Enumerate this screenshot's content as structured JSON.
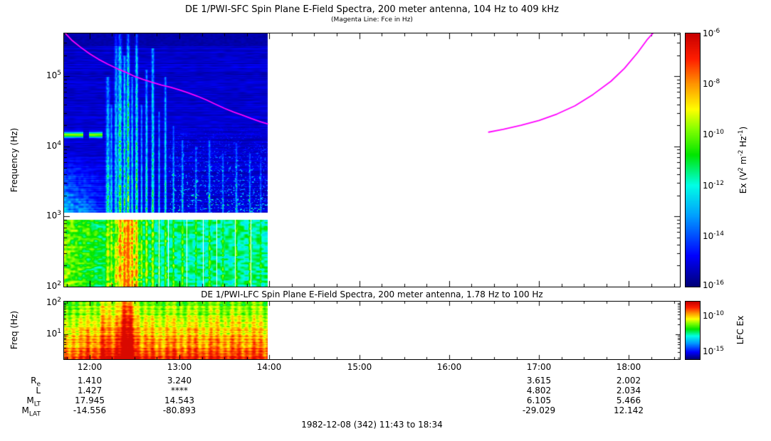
{
  "sfc": {
    "title": "DE 1/PWI-SFC  Spin Plane E-Field Spectra, 200 meter antenna, 104 Hz to 409 kHz",
    "subtitle": "(Magenta Line: Fce in Hz)",
    "ylabel": "Frequency (Hz)",
    "yticks": [
      {
        "base": "10",
        "exp": "5"
      },
      {
        "base": "10",
        "exp": "4"
      },
      {
        "base": "10",
        "exp": "3"
      },
      {
        "base": "10",
        "exp": "2"
      }
    ],
    "colorbar": {
      "ticks": [
        {
          "base": "10",
          "exp": "-6"
        },
        {
          "base": "10",
          "exp": "-8"
        },
        {
          "base": "10",
          "exp": "-10"
        },
        {
          "base": "10",
          "exp": "-12"
        },
        {
          "base": "10",
          "exp": "-14"
        },
        {
          "base": "10",
          "exp": "-16"
        }
      ],
      "label_parts": [
        {
          "t": "Ex (V"
        },
        {
          "t": "2",
          "sup": true
        },
        {
          "t": " m"
        },
        {
          "t": "-2",
          "sup": true
        },
        {
          "t": " Hz"
        },
        {
          "t": "-1",
          "sup": true
        },
        {
          "t": ")"
        }
      ]
    }
  },
  "lfc": {
    "title": "DE 1/PWI-LFC  Spin Plane E-Field Spectra, 200 meter antenna, 1.78 Hz to 100 Hz",
    "ylabel": "Freq (Hz)",
    "yticks": [
      {
        "base": "10",
        "exp": "2"
      },
      {
        "base": "10",
        "exp": "1"
      }
    ],
    "colorbar": {
      "ticks": [
        {
          "base": "10",
          "exp": "-10"
        },
        {
          "base": "10",
          "exp": "-15"
        }
      ],
      "label": "LFC Ex"
    }
  },
  "xaxis": {
    "ticks": [
      "12:00",
      "13:00",
      "14:00",
      "15:00",
      "16:00",
      "17:00",
      "18:00"
    ]
  },
  "ephemeris": {
    "rows": [
      {
        "label_base": "R",
        "label_sub": "e",
        "values": [
          "1.410",
          "3.240",
          "3.615",
          "2.002"
        ]
      },
      {
        "label_base": "L",
        "label_sub": "",
        "values": [
          "1.427",
          "****",
          "4.802",
          "2.034"
        ]
      },
      {
        "label_base": "M",
        "label_sub": "LT",
        "values": [
          "17.945",
          "14.543",
          "6.105",
          "5.466"
        ]
      },
      {
        "label_base": "M",
        "label_sub": "LAT",
        "values": [
          "-14.556",
          "-80.893",
          "-29.029",
          "12.142"
        ]
      }
    ]
  },
  "footer": {
    "text": "1982-12-08 (342) 11:43 to 18:34"
  },
  "chart_data": [
    {
      "type": "heatmap",
      "panel": "DE 1/PWI-SFC",
      "title": "DE 1/PWI-SFC  Spin Plane E-Field Spectra, 200 meter antenna, 104 Hz to 409 kHz",
      "subtitle": "(Magenta Line: Fce in Hz)",
      "ylabel": "Frequency (Hz)",
      "y_scale": "log",
      "ylim_hz": [
        100,
        409000
      ],
      "x_hours_range": [
        11.7167,
        18.5667
      ],
      "x_tick_hours": [
        12,
        13,
        14,
        15,
        16,
        17,
        18
      ],
      "xticklabels": [
        "12:00",
        "13:00",
        "14:00",
        "15:00",
        "16:00",
        "17:00",
        "18:00"
      ],
      "data_extent_hours": [
        11.7167,
        13.98
      ],
      "colormap": "rainbow",
      "colorbar": {
        "label": "Ex (V^2 m^-2 Hz^-1)",
        "scale": "log",
        "tick_exponents": [
          -6,
          -8,
          -10,
          -12,
          -14,
          -16
        ]
      },
      "fce_line": {
        "color": "#ff00ff",
        "units": "Hz",
        "segments": [
          [
            [
              11.7167,
              430000
            ],
            [
              11.8,
              330000
            ],
            [
              11.9,
              260000
            ],
            [
              12.0,
              210000
            ],
            [
              12.1,
              175000
            ],
            [
              12.2,
              150000
            ],
            [
              12.3,
              130000
            ],
            [
              12.4,
              115000
            ],
            [
              12.5,
              100000
            ],
            [
              12.6,
              90000
            ],
            [
              12.7,
              82000
            ],
            [
              12.8,
              75000
            ],
            [
              12.9,
              70000
            ],
            [
              13.0,
              64000
            ],
            [
              13.1,
              58000
            ],
            [
              13.2,
              52000
            ],
            [
              13.3,
              46000
            ],
            [
              13.4,
              40000
            ],
            [
              13.5,
              35000
            ],
            [
              13.6,
              31000
            ],
            [
              13.7,
              28000
            ],
            [
              13.8,
              25000
            ],
            [
              13.9,
              22500
            ],
            [
              13.98,
              21000
            ]
          ],
          [
            [
              16.44,
              16000
            ],
            [
              16.6,
              17500
            ],
            [
              16.8,
              20000
            ],
            [
              17.0,
              23500
            ],
            [
              17.2,
              29000
            ],
            [
              17.4,
              38000
            ],
            [
              17.6,
              55000
            ],
            [
              17.8,
              85000
            ],
            [
              17.95,
              130000
            ],
            [
              18.1,
              220000
            ],
            [
              18.2,
              330000
            ],
            [
              18.28,
              430000
            ]
          ]
        ]
      },
      "features": {
        "white_gap_logf": [
          2.962,
          3.06
        ],
        "lower_band_gaps_hours": [
          12.77,
          12.87,
          13.08,
          13.26,
          13.41,
          13.62,
          13.79
        ],
        "bursts": [
          [
            12.2,
            0.02,
            0.55,
            5.0
          ],
          [
            12.24,
            0.012,
            0.5,
            4.6
          ],
          [
            12.29,
            0.016,
            0.52,
            5.61
          ],
          [
            12.335,
            0.02,
            0.75,
            5.61
          ],
          [
            12.385,
            0.013,
            0.7,
            5.3
          ],
          [
            12.425,
            0.016,
            0.8,
            5.61
          ],
          [
            12.47,
            0.012,
            0.6,
            5.0
          ],
          [
            12.52,
            0.015,
            0.72,
            5.61
          ],
          [
            12.575,
            0.01,
            0.5,
            4.6
          ],
          [
            12.63,
            0.013,
            0.6,
            5.1
          ],
          [
            12.7,
            0.015,
            0.65,
            5.4
          ],
          [
            12.77,
            0.01,
            0.5,
            4.5
          ],
          [
            12.84,
            0.012,
            0.55,
            5.0
          ],
          [
            12.93,
            0.01,
            0.45,
            4.3
          ],
          [
            13.03,
            0.012,
            0.42,
            4.1
          ],
          [
            13.18,
            0.01,
            0.38,
            4.0
          ],
          [
            13.33,
            0.012,
            0.42,
            4.1
          ],
          [
            13.48,
            0.01,
            0.36,
            3.9
          ],
          [
            13.63,
            0.012,
            0.38,
            4.05
          ],
          [
            13.78,
            0.01,
            0.34,
            3.9
          ],
          [
            13.9,
            0.01,
            0.3,
            3.8
          ]
        ],
        "lower_burst": {
          "t": 12.42,
          "w": 0.13
        },
        "left_wedge_end_hour": 12.32,
        "narrowband_line": {
          "log_f": 4.17,
          "t_ranges": [
            [
              11.7167,
              11.93
            ],
            [
              11.99,
              12.14
            ]
          ]
        }
      }
    },
    {
      "type": "heatmap",
      "panel": "DE 1/PWI-LFC",
      "title": "DE 1/PWI-LFC  Spin Plane E-Field Spectra, 200 meter antenna, 1.78 Hz to 100 Hz",
      "ylabel": "Freq (Hz)",
      "y_scale": "log",
      "ylim_hz": [
        1.78,
        100
      ],
      "x_hours_range": [
        11.7167,
        18.5667
      ],
      "data_extent_hours": [
        11.7167,
        13.98
      ],
      "colormap": "rainbow",
      "colorbar": {
        "label": "LFC Ex",
        "tick_exponents": [
          -10,
          -15
        ]
      },
      "features": {
        "burst": {
          "t": 12.4,
          "w": 0.115
        },
        "minor_burst": {
          "t": 12.15,
          "w": 0.05
        }
      }
    }
  ]
}
